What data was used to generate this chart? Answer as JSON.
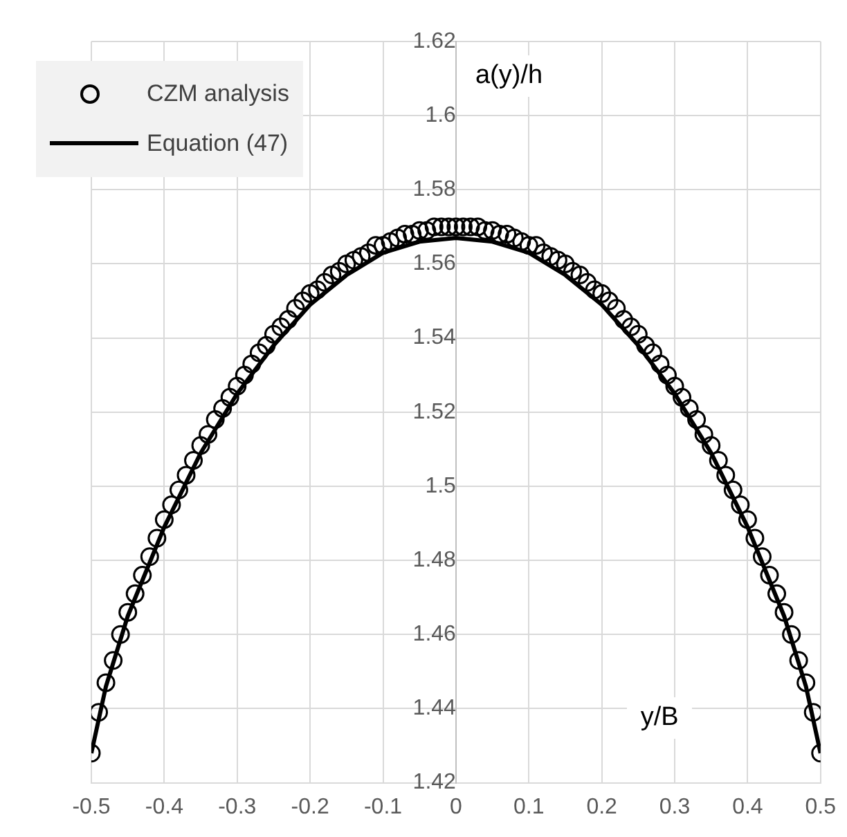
{
  "chart_data": {
    "type": "scatter",
    "xlabel": "y/B",
    "ylabel": "a(y)/h",
    "xlim": [
      -0.5,
      0.5
    ],
    "xticks": [
      -0.5,
      -0.4,
      -0.3,
      -0.2,
      -0.1,
      0,
      0.1,
      0.2,
      0.3,
      0.4,
      0.5
    ],
    "ylim": [
      1.42,
      1.62
    ],
    "yticks": [
      1.42,
      1.44,
      1.46,
      1.48,
      1.5,
      1.52,
      1.54,
      1.56,
      1.58,
      1.6,
      1.62
    ],
    "grid": true,
    "legend": "top left",
    "series": [
      {
        "name": "CZM analysis",
        "marker": "circle",
        "color": "#000000",
        "x": [
          -0.5,
          -0.49,
          -0.48,
          -0.47,
          -0.46,
          -0.45,
          -0.44,
          -0.43,
          -0.42,
          -0.41,
          -0.4,
          -0.39,
          -0.38,
          -0.37,
          -0.36,
          -0.35,
          -0.34,
          -0.33,
          -0.32,
          -0.31,
          -0.3,
          -0.29,
          -0.28,
          -0.27,
          -0.26,
          -0.25,
          -0.24,
          -0.23,
          -0.22,
          -0.21,
          -0.2,
          -0.19,
          -0.18,
          -0.17,
          -0.16,
          -0.15,
          -0.14,
          -0.13,
          -0.12,
          -0.11,
          -0.1,
          -0.09,
          -0.08,
          -0.07,
          -0.06,
          -0.05,
          -0.04,
          -0.03,
          -0.02,
          -0.01,
          0,
          0.01,
          0.02,
          0.03,
          0.04,
          0.05,
          0.06,
          0.07,
          0.08,
          0.09,
          0.1,
          0.11,
          0.12,
          0.13,
          0.14,
          0.15,
          0.16,
          0.17,
          0.18,
          0.19,
          0.2,
          0.21,
          0.22,
          0.23,
          0.24,
          0.25,
          0.26,
          0.27,
          0.28,
          0.29,
          0.3,
          0.31,
          0.32,
          0.33,
          0.34,
          0.35,
          0.36,
          0.37,
          0.38,
          0.39,
          0.4,
          0.41,
          0.42,
          0.43,
          0.44,
          0.45,
          0.46,
          0.47,
          0.48,
          0.49,
          0.5
        ],
        "values": [
          1.428,
          1.439,
          1.447,
          1.453,
          1.46,
          1.466,
          1.471,
          1.476,
          1.481,
          1.486,
          1.491,
          1.495,
          1.499,
          1.503,
          1.507,
          1.511,
          1.514,
          1.518,
          1.521,
          1.524,
          1.527,
          1.53,
          1.533,
          1.536,
          1.538,
          1.541,
          1.543,
          1.545,
          1.548,
          1.55,
          1.552,
          1.553,
          1.555,
          1.557,
          1.558,
          1.56,
          1.561,
          1.562,
          1.563,
          1.565,
          1.565,
          1.566,
          1.567,
          1.568,
          1.568,
          1.569,
          1.569,
          1.57,
          1.57,
          1.57,
          1.57,
          1.57,
          1.57,
          1.57,
          1.569,
          1.569,
          1.568,
          1.568,
          1.567,
          1.566,
          1.565,
          1.565,
          1.563,
          1.562,
          1.561,
          1.56,
          1.558,
          1.557,
          1.555,
          1.553,
          1.552,
          1.55,
          1.548,
          1.545,
          1.543,
          1.541,
          1.538,
          1.536,
          1.533,
          1.53,
          1.527,
          1.524,
          1.521,
          1.518,
          1.514,
          1.511,
          1.507,
          1.503,
          1.499,
          1.495,
          1.491,
          1.486,
          1.481,
          1.476,
          1.471,
          1.466,
          1.46,
          1.453,
          1.447,
          1.439,
          1.428
        ]
      },
      {
        "name": "Equation (47)",
        "type": "line",
        "marker": "none",
        "line_style": "solid",
        "color": "#000000",
        "x": [
          -0.5,
          -0.48,
          -0.45,
          -0.4,
          -0.35,
          -0.3,
          -0.25,
          -0.2,
          -0.15,
          -0.1,
          -0.05,
          0,
          0.05,
          0.1,
          0.15,
          0.2,
          0.25,
          0.3,
          0.35,
          0.4,
          0.45,
          0.48,
          0.5
        ],
        "values": [
          1.428,
          1.446,
          1.465,
          1.489,
          1.509,
          1.525,
          1.538,
          1.549,
          1.557,
          1.563,
          1.566,
          1.567,
          1.566,
          1.563,
          1.557,
          1.549,
          1.538,
          1.525,
          1.509,
          1.489,
          1.465,
          1.446,
          1.428
        ]
      }
    ]
  }
}
